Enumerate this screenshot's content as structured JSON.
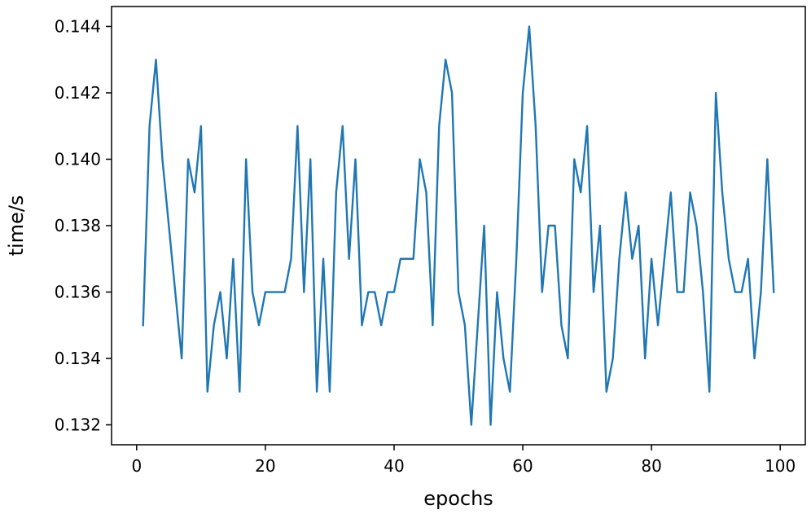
{
  "chart_data": {
    "type": "line",
    "xlabel": "epochs",
    "ylabel": "time/s",
    "xlim": [
      -3.9,
      103.9
    ],
    "ylim": [
      0.1314,
      0.1446
    ],
    "xticks": [
      0,
      20,
      40,
      60,
      80,
      100
    ],
    "xtick_labels": [
      "0",
      "20",
      "40",
      "60",
      "80",
      "100"
    ],
    "yticks": [
      0.132,
      0.134,
      0.136,
      0.138,
      0.14,
      0.142,
      0.144
    ],
    "ytick_labels": [
      "0.132",
      "0.134",
      "0.136",
      "0.138",
      "0.140",
      "0.142",
      "0.144"
    ],
    "grid": false,
    "line_color": "#1f77b4",
    "series": [
      {
        "x": [
          1,
          2,
          3,
          4,
          5,
          6,
          7,
          8,
          9,
          10,
          11,
          12,
          13,
          14,
          15,
          16,
          17,
          18,
          19,
          20,
          21,
          22,
          23,
          24,
          25,
          26,
          27,
          28,
          29,
          30,
          31,
          32,
          33,
          34,
          35,
          36,
          37,
          38,
          39,
          40,
          41,
          42,
          43,
          44,
          45,
          46,
          47,
          48,
          49,
          50,
          51,
          52,
          53,
          54,
          55,
          56,
          57,
          58,
          59,
          60,
          61,
          62,
          63,
          64,
          65,
          66,
          67,
          68,
          69,
          70,
          71,
          72,
          73,
          74,
          75,
          76,
          77,
          78,
          79,
          80,
          81,
          82,
          83,
          84,
          85,
          86,
          87,
          88,
          89,
          90,
          91,
          92,
          93,
          94,
          95,
          96,
          97,
          98,
          99
        ],
        "values": [
          0.135,
          0.141,
          0.143,
          0.14,
          0.138,
          0.136,
          0.134,
          0.14,
          0.139,
          0.141,
          0.133,
          0.135,
          0.136,
          0.134,
          0.137,
          0.133,
          0.14,
          0.136,
          0.135,
          0.136,
          0.136,
          0.136,
          0.136,
          0.137,
          0.141,
          0.136,
          0.14,
          0.133,
          0.137,
          0.133,
          0.139,
          0.141,
          0.137,
          0.14,
          0.135,
          0.136,
          0.136,
          0.135,
          0.136,
          0.136,
          0.137,
          0.137,
          0.137,
          0.14,
          0.139,
          0.135,
          0.141,
          0.143,
          0.142,
          0.136,
          0.135,
          0.132,
          0.135,
          0.138,
          0.132,
          0.136,
          0.134,
          0.133,
          0.137,
          0.142,
          0.144,
          0.141,
          0.136,
          0.138,
          0.138,
          0.135,
          0.134,
          0.14,
          0.139,
          0.141,
          0.136,
          0.138,
          0.133,
          0.134,
          0.137,
          0.139,
          0.137,
          0.138,
          0.134,
          0.137,
          0.135,
          0.137,
          0.139,
          0.136,
          0.136,
          0.139,
          0.138,
          0.136,
          0.133,
          0.142,
          0.139,
          0.137,
          0.136,
          0.136,
          0.137,
          0.134,
          0.136,
          0.14,
          0.136
        ]
      }
    ]
  }
}
